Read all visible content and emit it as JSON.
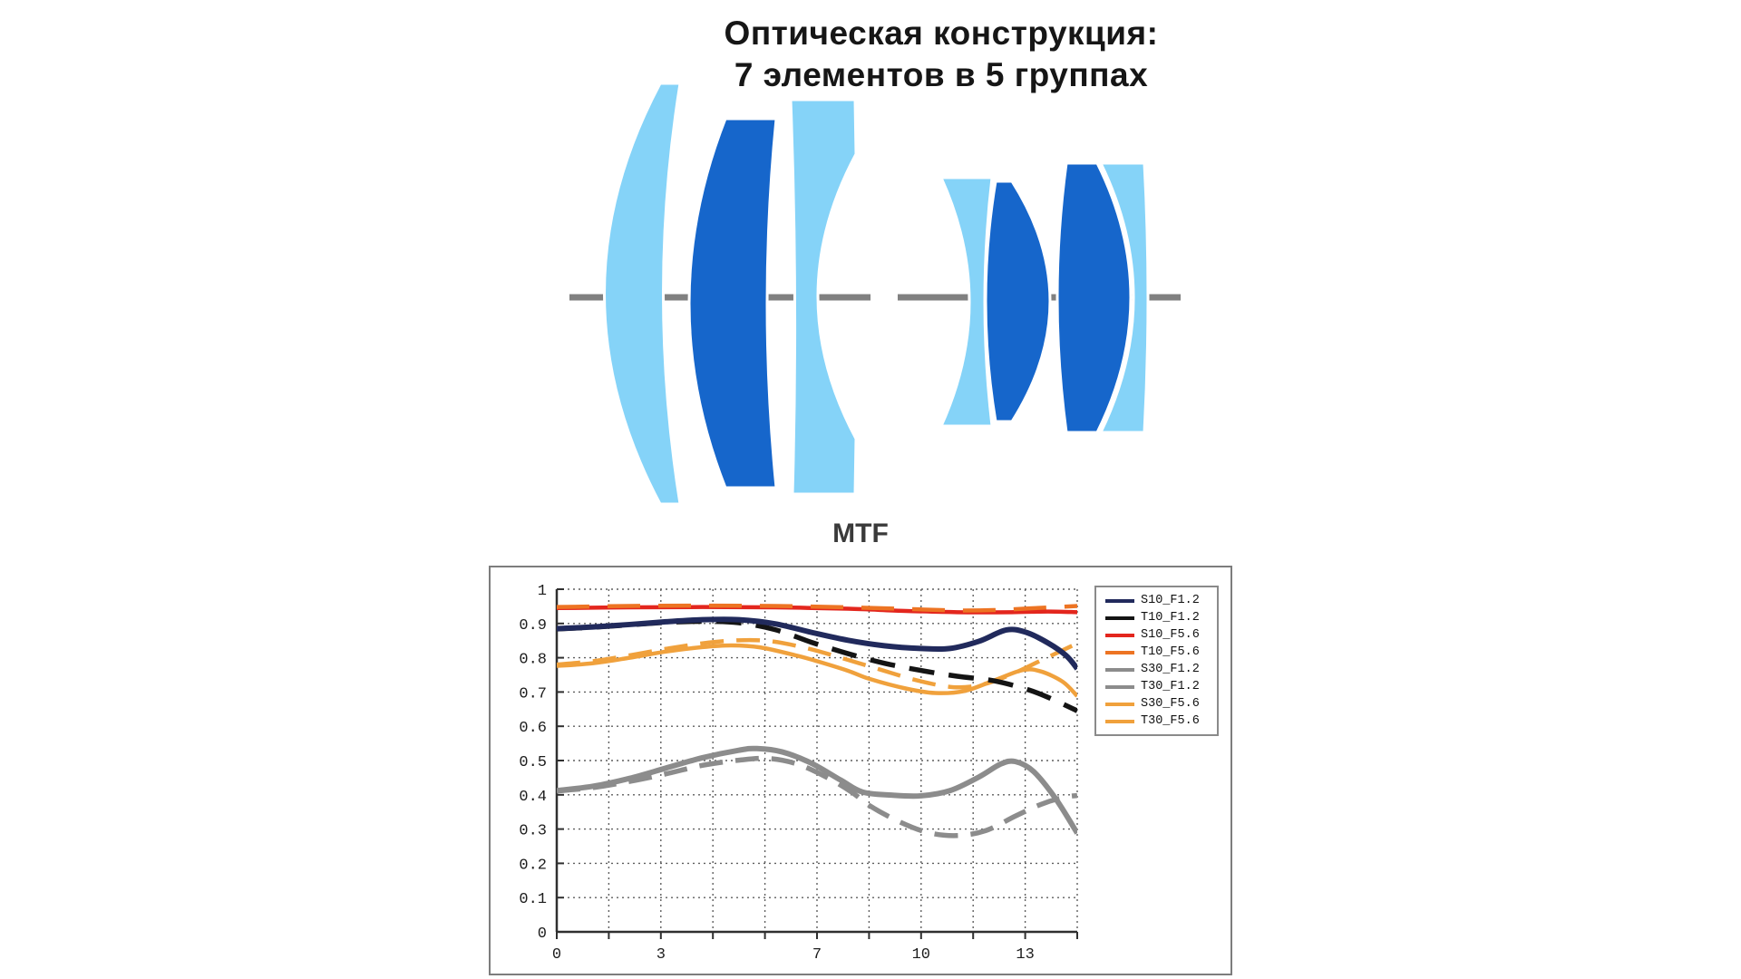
{
  "lens_diagram": {
    "title_line1": "Оптическая конструкция:",
    "title_line2": "7 элементов в 5 группах",
    "elements_count": 7,
    "groups_count": 5,
    "colors": {
      "light_element": "#85d3f8",
      "dark_element": "#1666cb",
      "axis": "#808080",
      "outline": "#ffffff"
    }
  },
  "chart_data": {
    "type": "line",
    "title": "MTF",
    "xlabel": "",
    "ylabel": "",
    "xlim": [
      0,
      14.3
    ],
    "ylim": [
      0,
      1
    ],
    "grid": true,
    "grid_color": "#5f5f5f",
    "x_gridline_count": 10,
    "y_gridline_count": 10,
    "legend_position": "inside-top-right",
    "x_tick_labels": [
      {
        "x": 0,
        "label": "0"
      },
      {
        "x": 2.86,
        "label": "3"
      },
      {
        "x": 7.15,
        "label": "7"
      },
      {
        "x": 10.01,
        "label": "10"
      },
      {
        "x": 12.87,
        "label": "13"
      }
    ],
    "y_tick_labels": [
      {
        "y": 0,
        "label": "0"
      },
      {
        "y": 0.1,
        "label": "0.1"
      },
      {
        "y": 0.2,
        "label": "0.2"
      },
      {
        "y": 0.3,
        "label": "0.3"
      },
      {
        "y": 0.4,
        "label": "0.4"
      },
      {
        "y": 0.5,
        "label": "0.5"
      },
      {
        "y": 0.6,
        "label": "0.6"
      },
      {
        "y": 0.7,
        "label": "0.7"
      },
      {
        "y": 0.8,
        "label": "0.8"
      },
      {
        "y": 0.9,
        "label": "0.9"
      },
      {
        "y": 1,
        "label": "1"
      }
    ],
    "legend": [
      {
        "label": "S10_F1.2",
        "color": "#212a5c"
      },
      {
        "label": "T10_F1.2",
        "color": "#141414"
      },
      {
        "label": "S10_F5.6",
        "color": "#e3261d"
      },
      {
        "label": "T10_F5.6",
        "color": "#ed7423"
      },
      {
        "label": "S30_F1.2",
        "color": "#8c8c8c"
      },
      {
        "label": "T30_F1.2",
        "color": "#8c8c8c"
      },
      {
        "label": "S30_F5.6",
        "color": "#f0a13c"
      },
      {
        "label": "T30_F5.6",
        "color": "#f0a13c"
      }
    ],
    "series": [
      {
        "name": "S10_F1.2",
        "color": "#212a5c",
        "dash": null,
        "width": 6,
        "points": [
          [
            0,
            0.885
          ],
          [
            1,
            0.89
          ],
          [
            2,
            0.897
          ],
          [
            3,
            0.905
          ],
          [
            4,
            0.911
          ],
          [
            5,
            0.911
          ],
          [
            6,
            0.899
          ],
          [
            7,
            0.874
          ],
          [
            8,
            0.851
          ],
          [
            9,
            0.835
          ],
          [
            10,
            0.827
          ],
          [
            10.8,
            0.827
          ],
          [
            11.6,
            0.848
          ],
          [
            12.35,
            0.881
          ],
          [
            12.9,
            0.874
          ],
          [
            13.5,
            0.843
          ],
          [
            14,
            0.806
          ],
          [
            14.3,
            0.768
          ]
        ]
      },
      {
        "name": "T10_F1.2",
        "color": "#141414",
        "dash": "28 16",
        "width": 5.5,
        "points": [
          [
            0,
            0.884
          ],
          [
            1,
            0.889
          ],
          [
            2,
            0.896
          ],
          [
            3,
            0.903
          ],
          [
            4,
            0.906
          ],
          [
            5,
            0.902
          ],
          [
            6,
            0.882
          ],
          [
            7,
            0.845
          ],
          [
            8,
            0.812
          ],
          [
            9,
            0.784
          ],
          [
            10,
            0.763
          ],
          [
            11,
            0.746
          ],
          [
            12,
            0.733
          ],
          [
            13,
            0.705
          ],
          [
            13.7,
            0.675
          ],
          [
            14.3,
            0.645
          ]
        ]
      },
      {
        "name": "S10_F5.6",
        "color": "#e3261d",
        "dash": null,
        "width": 4.5,
        "points": [
          [
            0,
            0.945
          ],
          [
            2,
            0.947
          ],
          [
            4,
            0.948
          ],
          [
            6,
            0.947
          ],
          [
            8,
            0.943
          ],
          [
            9.5,
            0.937
          ],
          [
            11,
            0.933
          ],
          [
            12.5,
            0.933
          ],
          [
            13.5,
            0.935
          ],
          [
            14.3,
            0.933
          ]
        ]
      },
      {
        "name": "T10_F5.6",
        "color": "#ed7423",
        "dash": "36 20",
        "width": 4.5,
        "points": [
          [
            0,
            0.948
          ],
          [
            2,
            0.951
          ],
          [
            4,
            0.952
          ],
          [
            6,
            0.951
          ],
          [
            8,
            0.947
          ],
          [
            10,
            0.941
          ],
          [
            11,
            0.938
          ],
          [
            12,
            0.939
          ],
          [
            13,
            0.944
          ],
          [
            14.3,
            0.951
          ]
        ]
      },
      {
        "name": "S30_F1.2",
        "color": "#8c8c8c",
        "dash": null,
        "width": 6,
        "points": [
          [
            0,
            0.412
          ],
          [
            1,
            0.425
          ],
          [
            2,
            0.448
          ],
          [
            3,
            0.478
          ],
          [
            4,
            0.508
          ],
          [
            5,
            0.53
          ],
          [
            5.5,
            0.535
          ],
          [
            6.2,
            0.525
          ],
          [
            7,
            0.492
          ],
          [
            7.8,
            0.443
          ],
          [
            8.4,
            0.408
          ],
          [
            9.2,
            0.399
          ],
          [
            10,
            0.397
          ],
          [
            10.8,
            0.412
          ],
          [
            11.6,
            0.452
          ],
          [
            12.2,
            0.49
          ],
          [
            12.6,
            0.497
          ],
          [
            13.1,
            0.468
          ],
          [
            13.7,
            0.39
          ],
          [
            14.3,
            0.288
          ]
        ]
      },
      {
        "name": "T30_F1.2",
        "color": "#8c8c8c",
        "dash": "26 14",
        "width": 5.5,
        "points": [
          [
            0,
            0.411
          ],
          [
            1,
            0.421
          ],
          [
            2,
            0.439
          ],
          [
            3,
            0.461
          ],
          [
            4,
            0.486
          ],
          [
            5,
            0.501
          ],
          [
            5.8,
            0.506
          ],
          [
            6.6,
            0.49
          ],
          [
            7.4,
            0.452
          ],
          [
            8.1,
            0.408
          ],
          [
            8.6,
            0.368
          ],
          [
            9.4,
            0.322
          ],
          [
            10.2,
            0.29
          ],
          [
            11,
            0.281
          ],
          [
            11.8,
            0.296
          ],
          [
            12.6,
            0.338
          ],
          [
            13.3,
            0.372
          ],
          [
            13.9,
            0.392
          ],
          [
            14.3,
            0.398
          ]
        ]
      },
      {
        "name": "S30_F5.6",
        "color": "#f0a13c",
        "dash": null,
        "width": 4.5,
        "points": [
          [
            0,
            0.776
          ],
          [
            1,
            0.784
          ],
          [
            2,
            0.8
          ],
          [
            3,
            0.818
          ],
          [
            4,
            0.831
          ],
          [
            4.8,
            0.836
          ],
          [
            5.6,
            0.83
          ],
          [
            6.6,
            0.806
          ],
          [
            7.15,
            0.79
          ],
          [
            8,
            0.762
          ],
          [
            8.6,
            0.738
          ],
          [
            9.6,
            0.71
          ],
          [
            10.4,
            0.697
          ],
          [
            11.2,
            0.703
          ],
          [
            12,
            0.733
          ],
          [
            12.8,
            0.764
          ],
          [
            13.3,
            0.76
          ],
          [
            13.9,
            0.73
          ],
          [
            14.3,
            0.688
          ]
        ]
      },
      {
        "name": "T30_F5.6",
        "color": "#f0a13c",
        "dash": "26 14",
        "width": 4.5,
        "points": [
          [
            0,
            0.78
          ],
          [
            1,
            0.79
          ],
          [
            2,
            0.807
          ],
          [
            3,
            0.826
          ],
          [
            4,
            0.842
          ],
          [
            5,
            0.851
          ],
          [
            5.9,
            0.848
          ],
          [
            6.9,
            0.827
          ],
          [
            7.9,
            0.797
          ],
          [
            8.9,
            0.765
          ],
          [
            9.9,
            0.734
          ],
          [
            10.9,
            0.714
          ],
          [
            11.7,
            0.722
          ],
          [
            12.5,
            0.752
          ],
          [
            13.3,
            0.792
          ],
          [
            13.9,
            0.822
          ],
          [
            14.3,
            0.842
          ]
        ]
      }
    ]
  }
}
